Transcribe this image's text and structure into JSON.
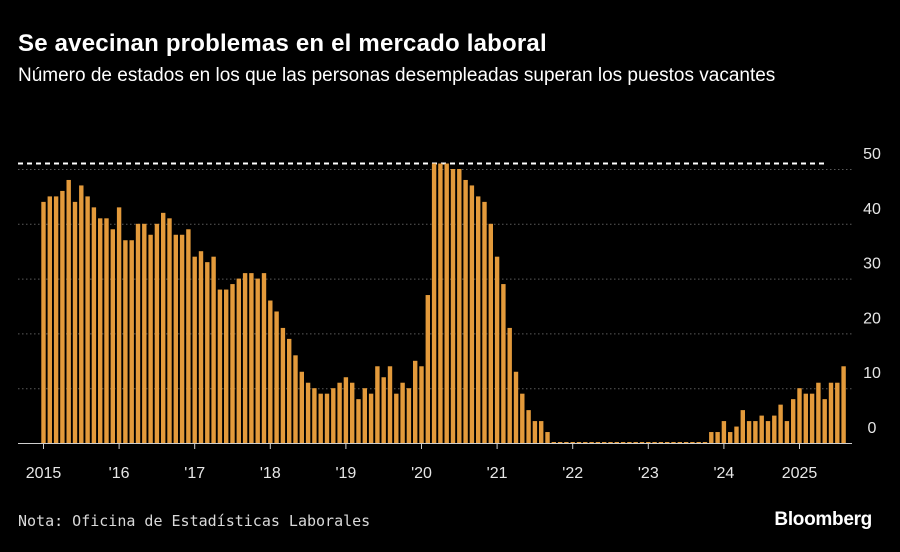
{
  "header": {
    "title": "Se avecinan problemas en el mercado laboral",
    "subtitle": "Número de estados en los que las personas desempleadas superan los puestos vacantes"
  },
  "footer": {
    "note": "Nota: Oficina de Estadísticas Laborales",
    "logo": "Bloomberg"
  },
  "colors": {
    "bar": "#e39a3b",
    "background": "#000000",
    "grid": "#5a5a5a",
    "reference_line": "#ffffff"
  },
  "chart_data": {
    "type": "bar",
    "title": "Se avecinan problemas en el mercado laboral",
    "subtitle": "Número de estados en los que las personas desempleadas superan los puestos vacantes",
    "frequency": "monthly",
    "start": "2015-01",
    "end": "2025-01",
    "xlabel": "",
    "ylabel": "",
    "ylim": [
      0,
      51
    ],
    "y_axis_side": "right",
    "y_ticks": [
      0,
      10,
      20,
      30,
      40,
      50
    ],
    "x_tick_labels": [
      "2015",
      "'16",
      "'17",
      "'18",
      "'19",
      "'20",
      "'21",
      "'22",
      "'23",
      "'24",
      "2025"
    ],
    "reference_line": {
      "value": 51,
      "style": "dashed"
    },
    "grid": true,
    "values": [
      44,
      45,
      45,
      46,
      48,
      44,
      47,
      45,
      43,
      41,
      41,
      39,
      43,
      37,
      37,
      40,
      40,
      38,
      40,
      42,
      41,
      38,
      38,
      39,
      34,
      35,
      33,
      34,
      28,
      28,
      29,
      30,
      31,
      31,
      30,
      31,
      26,
      24,
      21,
      19,
      16,
      13,
      11,
      10,
      9,
      9,
      10,
      11,
      12,
      11,
      8,
      10,
      9,
      14,
      12,
      14,
      9,
      11,
      10,
      15,
      14,
      27,
      51,
      51,
      51,
      50,
      50,
      48,
      47,
      45,
      44,
      40,
      34,
      29,
      21,
      13,
      9,
      6,
      4,
      4,
      2,
      0,
      0,
      0,
      0,
      0,
      0,
      0,
      0,
      0,
      0,
      0,
      0,
      0,
      0,
      0,
      0,
      0,
      0,
      0,
      0,
      0,
      0,
      0,
      0,
      0,
      2,
      2,
      4,
      2,
      3,
      6,
      4,
      4,
      5,
      4,
      5,
      7,
      4,
      8,
      10,
      9,
      9,
      11,
      8,
      11,
      11,
      14
    ]
  }
}
